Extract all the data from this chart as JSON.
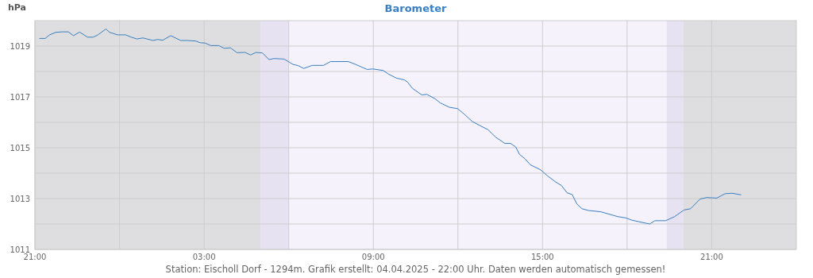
{
  "chart_data": {
    "type": "line",
    "title": "Barometer",
    "ylabel": "hPa",
    "annotations": [
      "Station: Eischoll Dorf - 1294m. Grafik erstellt: 04.04.2025 - 22:00 Uhr. Daten werden automatisch gemessen!"
    ],
    "xlim": [
      "2025-04-03T21:00",
      "2025-04-05T00:00"
    ],
    "ylim": [
      1011,
      1020
    ],
    "xticks": [
      {
        "value": "2025-04-03T21:00",
        "label": "21:00"
      },
      {
        "value": "2025-04-04T00:00",
        "label": null
      },
      {
        "value": "2025-04-04T03:00",
        "label": "03:00"
      },
      {
        "value": "2025-04-04T06:00",
        "label": null
      },
      {
        "value": "2025-04-04T09:00",
        "label": "09:00"
      },
      {
        "value": "2025-04-04T12:00",
        "label": null
      },
      {
        "value": "2025-04-04T15:00",
        "label": "15:00"
      },
      {
        "value": "2025-04-04T18:00",
        "label": null
      },
      {
        "value": "2025-04-04T21:00",
        "label": "21:00"
      }
    ],
    "yticks": [
      1011,
      {
        "value": 1012,
        "label": null
      },
      1013,
      {
        "value": 1014,
        "label": null
      },
      1015,
      {
        "value": 1016,
        "label": null
      },
      1017,
      {
        "value": 1018,
        "label": null
      },
      1019
    ],
    "grid": true,
    "marker": "none",
    "line_style": "solid",
    "bands": [
      {
        "axis": "x",
        "from": "2025-04-03T21:00",
        "to": "2025-04-04T05:00",
        "color": "#dedee0"
      },
      {
        "axis": "x",
        "from": "2025-04-04T05:00",
        "to": "2025-04-04T06:00",
        "color": "#e6e2f2"
      },
      {
        "axis": "x",
        "from": "2025-04-04T06:00",
        "to": "2025-04-04T19:24",
        "color": "#f5f2fc"
      },
      {
        "axis": "x",
        "from": "2025-04-04T19:24",
        "to": "2025-04-04T20:00",
        "color": "#e6e2f2"
      },
      {
        "axis": "x",
        "from": "2025-04-04T20:00",
        "to": "2025-04-05T00:00",
        "color": "#dedee0"
      }
    ],
    "series": [
      {
        "color": "#3a7fc1",
        "x": [
          "2025-04-03T21:10",
          "2025-04-03T21:22",
          "2025-04-03T21:31",
          "2025-04-03T21:44",
          "2025-04-03T21:58",
          "2025-04-03T22:11",
          "2025-04-03T22:22",
          "2025-04-03T22:35",
          "2025-04-03T22:52",
          "2025-04-03T23:04",
          "2025-04-03T23:14",
          "2025-04-03T23:31",
          "2025-04-03T23:39",
          "2025-04-03T23:56",
          "2025-04-04T00:13",
          "2025-04-04T00:25",
          "2025-04-04T00:37",
          "2025-04-04T00:50",
          "2025-04-04T01:11",
          "2025-04-04T01:21",
          "2025-04-04T01:32",
          "2025-04-04T01:49",
          "2025-04-04T02:10",
          "2025-04-04T02:23",
          "2025-04-04T02:42",
          "2025-04-04T02:52",
          "2025-04-04T03:02",
          "2025-04-04T03:14",
          "2025-04-04T03:31",
          "2025-04-04T03:43",
          "2025-04-04T03:56",
          "2025-04-04T04:10",
          "2025-04-04T04:27",
          "2025-04-04T04:39",
          "2025-04-04T04:50",
          "2025-04-04T05:04",
          "2025-04-04T05:18",
          "2025-04-04T05:29",
          "2025-04-04T05:50",
          "2025-04-04T06:09",
          "2025-04-04T06:20",
          "2025-04-04T06:32",
          "2025-04-04T06:50",
          "2025-04-04T07:14",
          "2025-04-04T07:29",
          "2025-04-04T08:07",
          "2025-04-04T08:22",
          "2025-04-04T08:47",
          "2025-04-04T08:59",
          "2025-04-04T09:21",
          "2025-04-04T09:32",
          "2025-04-04T09:49",
          "2025-04-04T10:06",
          "2025-04-04T10:13",
          "2025-04-04T10:23",
          "2025-04-04T10:43",
          "2025-04-04T10:54",
          "2025-04-04T11:11",
          "2025-04-04T11:22",
          "2025-04-04T11:42",
          "2025-04-04T11:59",
          "2025-04-04T12:13",
          "2025-04-04T12:30",
          "2025-04-04T12:47",
          "2025-04-04T13:04",
          "2025-04-04T13:20",
          "2025-04-04T13:40",
          "2025-04-04T13:52",
          "2025-04-04T14:03",
          "2025-04-04T14:11",
          "2025-04-04T14:23",
          "2025-04-04T14:34",
          "2025-04-04T14:56",
          "2025-04-04T15:11",
          "2025-04-04T15:28",
          "2025-04-04T15:40",
          "2025-04-04T15:52",
          "2025-04-04T16:03",
          "2025-04-04T16:13",
          "2025-04-04T16:24",
          "2025-04-04T16:38",
          "2025-04-04T17:04",
          "2025-04-04T17:23",
          "2025-04-04T17:40",
          "2025-04-04T17:57",
          "2025-04-04T18:10",
          "2025-04-04T18:25",
          "2025-04-04T18:48",
          "2025-04-04T18:59",
          "2025-04-04T19:22",
          "2025-04-04T19:41",
          "2025-04-04T20:01",
          "2025-04-04T20:15",
          "2025-04-04T20:35",
          "2025-04-04T20:49",
          "2025-04-04T21:11",
          "2025-04-04T21:28",
          "2025-04-04T21:43",
          "2025-04-04T22:02"
        ],
        "values": [
          1019.3,
          1019.3,
          1019.44,
          1019.54,
          1019.56,
          1019.56,
          1019.41,
          1019.55,
          1019.35,
          1019.35,
          1019.44,
          1019.67,
          1019.54,
          1019.44,
          1019.44,
          1019.35,
          1019.28,
          1019.32,
          1019.22,
          1019.26,
          1019.23,
          1019.41,
          1019.22,
          1019.22,
          1019.2,
          1019.13,
          1019.12,
          1019.02,
          1019.02,
          1018.91,
          1018.93,
          1018.74,
          1018.75,
          1018.65,
          1018.75,
          1018.73,
          1018.47,
          1018.51,
          1018.49,
          1018.28,
          1018.23,
          1018.12,
          1018.24,
          1018.24,
          1018.39,
          1018.39,
          1018.28,
          1018.08,
          1018.1,
          1018.04,
          1017.9,
          1017.74,
          1017.67,
          1017.58,
          1017.34,
          1017.08,
          1017.1,
          1016.93,
          1016.77,
          1016.59,
          1016.54,
          1016.33,
          1016.04,
          1015.87,
          1015.71,
          1015.42,
          1015.17,
          1015.17,
          1015.03,
          1014.74,
          1014.56,
          1014.33,
          1014.13,
          1013.89,
          1013.65,
          1013.52,
          1013.23,
          1013.16,
          1012.79,
          1012.6,
          1012.53,
          1012.48,
          1012.38,
          1012.29,
          1012.24,
          1012.15,
          1012.09,
          1012.0,
          1012.13,
          1012.13,
          1012.29,
          1012.55,
          1012.6,
          1012.98,
          1013.04,
          1013.02,
          1013.19,
          1013.21,
          1013.15
        ]
      }
    ]
  }
}
